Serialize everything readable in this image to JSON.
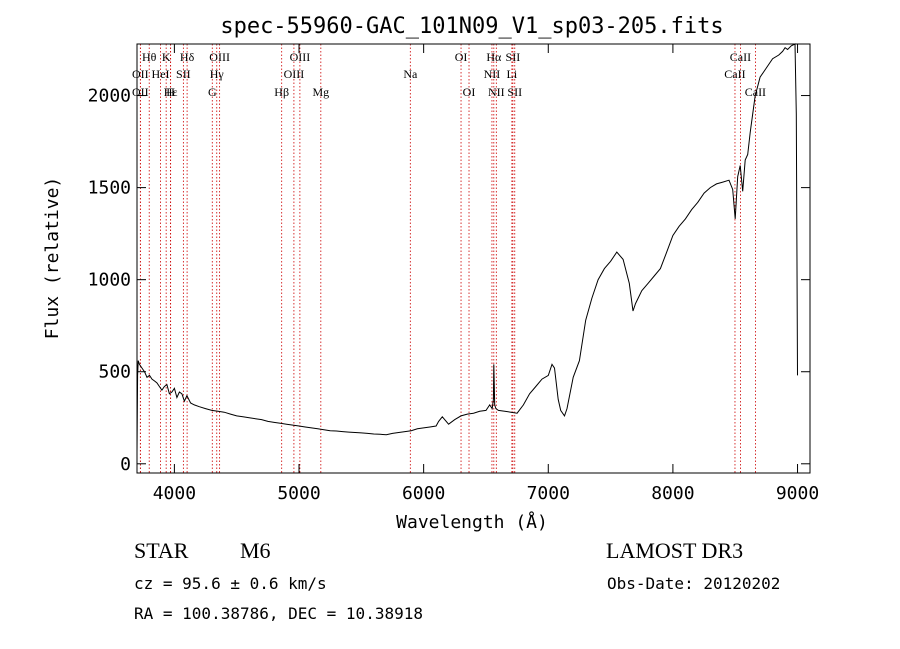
{
  "chart_data": {
    "type": "line",
    "title": "spec-55960-GAC_101N09_V1_sp03-205.fits",
    "xlabel": "Wavelength (Å)",
    "ylabel": "Flux (relative)",
    "xlim": [
      3700,
      9100
    ],
    "ylim": [
      -50,
      2280
    ],
    "xticks": [
      4000,
      5000,
      6000,
      7000,
      8000,
      9000
    ],
    "yticks": [
      0,
      500,
      1000,
      1500,
      2000
    ],
    "series": [
      {
        "name": "flux",
        "x": [
          3700,
          3705,
          3710,
          3720,
          3740,
          3760,
          3780,
          3800,
          3820,
          3840,
          3860,
          3880,
          3900,
          3920,
          3940,
          3960,
          3980,
          4000,
          4020,
          4040,
          4060,
          4080,
          4100,
          4130,
          4160,
          4200,
          4250,
          4300,
          4350,
          4400,
          4450,
          4500,
          4550,
          4600,
          4650,
          4700,
          4750,
          4800,
          4850,
          4900,
          4950,
          5000,
          5050,
          5100,
          5150,
          5200,
          5250,
          5300,
          5350,
          5400,
          5450,
          5500,
          5550,
          5600,
          5650,
          5700,
          5750,
          5800,
          5850,
          5900,
          5950,
          6000,
          6050,
          6100,
          6120,
          6150,
          6200,
          6250,
          6300,
          6350,
          6400,
          6450,
          6500,
          6530,
          6550,
          6560,
          6563,
          6570,
          6580,
          6600,
          6650,
          6700,
          6750,
          6800,
          6850,
          6900,
          6950,
          7000,
          7030,
          7050,
          7080,
          7100,
          7130,
          7150,
          7200,
          7250,
          7300,
          7350,
          7400,
          7450,
          7500,
          7550,
          7600,
          7650,
          7680,
          7700,
          7750,
          7800,
          7850,
          7900,
          7950,
          8000,
          8050,
          8100,
          8150,
          8200,
          8250,
          8300,
          8350,
          8400,
          8450,
          8480,
          8500,
          8520,
          8540,
          8560,
          8580,
          8600,
          8620,
          8640,
          8660,
          8680,
          8700,
          8750,
          8800,
          8850,
          8880,
          8900,
          8920,
          8950,
          8980,
          8990,
          9000
        ],
        "values": [
          60,
          480,
          560,
          540,
          520,
          500,
          470,
          480,
          460,
          450,
          440,
          420,
          400,
          420,
          430,
          380,
          390,
          410,
          360,
          390,
          380,
          340,
          370,
          330,
          320,
          310,
          300,
          290,
          285,
          280,
          270,
          260,
          255,
          250,
          245,
          240,
          230,
          225,
          220,
          215,
          210,
          205,
          200,
          195,
          190,
          185,
          180,
          178,
          175,
          172,
          170,
          168,
          165,
          162,
          160,
          158,
          165,
          170,
          175,
          180,
          190,
          195,
          200,
          205,
          230,
          255,
          215,
          240,
          260,
          270,
          275,
          285,
          290,
          320,
          300,
          350,
          540,
          320,
          300,
          290,
          285,
          280,
          275,
          320,
          380,
          420,
          460,
          480,
          540,
          520,
          350,
          290,
          260,
          300,
          470,
          560,
          780,
          900,
          1000,
          1060,
          1100,
          1150,
          1110,
          980,
          830,
          870,
          940,
          980,
          1020,
          1060,
          1150,
          1240,
          1290,
          1330,
          1380,
          1420,
          1470,
          1500,
          1520,
          1530,
          1540,
          1490,
          1330,
          1560,
          1620,
          1480,
          1650,
          1680,
          1800,
          1900,
          2000,
          2050,
          2100,
          2150,
          2200,
          2220,
          2240,
          2260,
          2250,
          2270,
          2280,
          1900,
          480
        ]
      }
    ],
    "lines": [
      {
        "label": "Hθ",
        "x": 3798,
        "row": 0
      },
      {
        "label": "K",
        "x": 3934,
        "row": 0
      },
      {
        "label": "Hδ",
        "x": 4102,
        "row": 0
      },
      {
        "label": "OIII",
        "x": 4363,
        "row": 0
      },
      {
        "label": "OIII",
        "x": 5007,
        "row": 0
      },
      {
        "label": "OI",
        "x": 6300,
        "row": 0
      },
      {
        "label": "Hα",
        "x": 6563,
        "row": 0
      },
      {
        "label": "SII",
        "x": 6716,
        "row": 0
      },
      {
        "label": "CaII",
        "x": 8542,
        "row": 0
      },
      {
        "label": "OII",
        "x": 3727,
        "row": 1
      },
      {
        "label": "HeI",
        "x": 3889,
        "row": 1
      },
      {
        "label": "SII",
        "x": 4072,
        "row": 1
      },
      {
        "label": "Hγ",
        "x": 4340,
        "row": 1
      },
      {
        "label": "OIII",
        "x": 4959,
        "row": 1
      },
      {
        "label": "Na",
        "x": 5893,
        "row": 1
      },
      {
        "label": "NII",
        "x": 6548,
        "row": 1
      },
      {
        "label": "Li",
        "x": 6708,
        "row": 1
      },
      {
        "label": "CaII",
        "x": 8498,
        "row": 1
      },
      {
        "label": "OII",
        "x": 3727,
        "row": 2
      },
      {
        "label": "Hε",
        "x": 3970,
        "row": 2
      },
      {
        "label": "H",
        "x": 3969,
        "row": 2
      },
      {
        "label": "G",
        "x": 4304,
        "row": 2
      },
      {
        "label": "Hβ",
        "x": 4861,
        "row": 2
      },
      {
        "label": "Mg",
        "x": 5175,
        "row": 2
      },
      {
        "label": "OI",
        "x": 6364,
        "row": 2
      },
      {
        "label": "NII",
        "x": 6583,
        "row": 2
      },
      {
        "label": "SII",
        "x": 6731,
        "row": 2
      },
      {
        "label": "CaII",
        "x": 8662,
        "row": 2
      }
    ],
    "line_color": "#cc0000",
    "spectrum_color": "#000000"
  },
  "info": {
    "object_class": "STAR",
    "subclass": "M6",
    "survey": "LAMOST DR3",
    "redshift": "cz = 95.6 ± 0.6 km/s",
    "obs_date": "Obs-Date: 20120202",
    "coords": "RA = 100.38786, DEC =  10.38918"
  }
}
